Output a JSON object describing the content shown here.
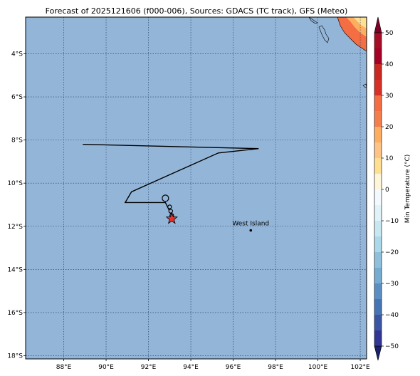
{
  "title": "Forecast of 2025121606 (f000-006), Sources: GDACS (TC track), GFS (Meteo)",
  "colors": {
    "ocean": "#93b5d8",
    "track": "#000000",
    "storm_marker": "#e8312a",
    "grid": "#1f3b66"
  },
  "map": {
    "lon_range": [
      86.2,
      102.3
    ],
    "lat_range": [
      -18.15,
      -2.3
    ],
    "lon_ticks": [
      {
        "value": 88,
        "label": "88°E"
      },
      {
        "value": 90,
        "label": "90°E"
      },
      {
        "value": 92,
        "label": "92°E"
      },
      {
        "value": 94,
        "label": "94°E"
      },
      {
        "value": 96,
        "label": "96°E"
      },
      {
        "value": 98,
        "label": "98°E"
      },
      {
        "value": 100,
        "label": "100°E"
      },
      {
        "value": 102,
        "label": "102°E"
      }
    ],
    "lat_ticks": [
      {
        "value": -4,
        "label": "4°S"
      },
      {
        "value": -6,
        "label": "6°S"
      },
      {
        "value": -8,
        "label": "8°S"
      },
      {
        "value": -10,
        "label": "10°S"
      },
      {
        "value": -12,
        "label": "12°S"
      },
      {
        "value": -14,
        "label": "14°S"
      },
      {
        "value": -16,
        "label": "16°S"
      },
      {
        "value": -18,
        "label": "18°S"
      }
    ],
    "track": [
      [
        88.9,
        -8.2
      ],
      [
        97.2,
        -8.4
      ],
      [
        95.3,
        -8.6
      ],
      [
        91.2,
        -10.4
      ],
      [
        90.9,
        -10.9
      ],
      [
        92.8,
        -10.9
      ],
      [
        93.05,
        -11.4
      ],
      [
        93.1,
        -11.6
      ]
    ],
    "track_positions": [
      [
        92.8,
        -10.7
      ],
      [
        93.0,
        -11.1
      ],
      [
        93.05,
        -11.3
      ],
      [
        93.1,
        -11.5
      ]
    ],
    "storm_current": [
      93.1,
      -11.65
    ],
    "places": [
      {
        "name": "West Island",
        "lon": 96.83,
        "lat": -12.19
      }
    ]
  },
  "colorbar": {
    "label": "Min Temperature (°C)",
    "min": -55,
    "max": 55,
    "ticks": [
      {
        "value": 50,
        "label": "50"
      },
      {
        "value": 40,
        "label": "40"
      },
      {
        "value": 30,
        "label": "30"
      },
      {
        "value": 20,
        "label": "20"
      },
      {
        "value": 10,
        "label": "10"
      },
      {
        "value": 0,
        "label": "0"
      },
      {
        "value": -10,
        "label": "−10"
      },
      {
        "value": -20,
        "label": "−20"
      },
      {
        "value": -30,
        "label": "−30"
      },
      {
        "value": -40,
        "label": "−40"
      },
      {
        "value": -50,
        "label": "−50"
      }
    ],
    "bins": [
      {
        "from": 50,
        "to": 55,
        "color": "#7f0026"
      },
      {
        "from": 45,
        "to": 50,
        "color": "#a50d26"
      },
      {
        "from": 40,
        "to": 45,
        "color": "#a50026"
      },
      {
        "from": 35,
        "to": 40,
        "color": "#c8281f"
      },
      {
        "from": 30,
        "to": 35,
        "color": "#d73027"
      },
      {
        "from": 25,
        "to": 30,
        "color": "#f46d43"
      },
      {
        "from": 20,
        "to": 25,
        "color": "#f57f4c"
      },
      {
        "from": 15,
        "to": 20,
        "color": "#fdae61"
      },
      {
        "from": 10,
        "to": 15,
        "color": "#fdc486"
      },
      {
        "from": 5,
        "to": 10,
        "color": "#fee090"
      },
      {
        "from": 0,
        "to": 5,
        "color": "#fff5d8"
      },
      {
        "from": -5,
        "to": 0,
        "color": "#f2fafd"
      },
      {
        "from": -10,
        "to": -5,
        "color": "#e0f3f8"
      },
      {
        "from": -15,
        "to": -10,
        "color": "#c7e7f1"
      },
      {
        "from": -20,
        "to": -15,
        "color": "#abd9e9"
      },
      {
        "from": -25,
        "to": -20,
        "color": "#8ec0dc"
      },
      {
        "from": -30,
        "to": -25,
        "color": "#74add1"
      },
      {
        "from": -35,
        "to": -30,
        "color": "#5b8fc3"
      },
      {
        "from": -40,
        "to": -35,
        "color": "#4575b4"
      },
      {
        "from": -45,
        "to": -40,
        "color": "#3a56a3"
      },
      {
        "from": -50,
        "to": -45,
        "color": "#313695"
      },
      {
        "from": -55,
        "to": -50,
        "color": "#1a1f6e"
      }
    ]
  }
}
